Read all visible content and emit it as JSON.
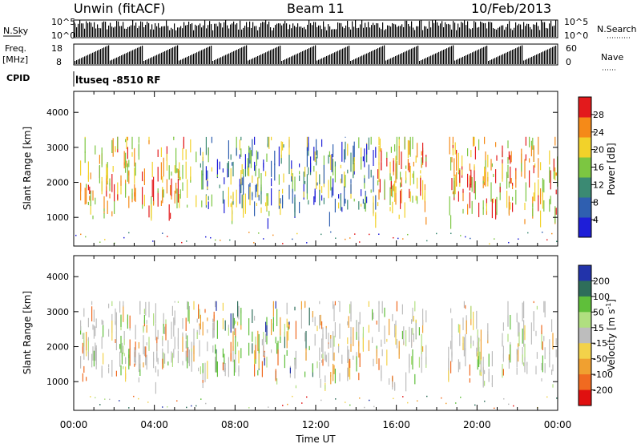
{
  "header": {
    "site": "Unwin (fitACF)",
    "beam": "Beam 11",
    "date": "10/Feb/2013"
  },
  "top_panels": {
    "nsky_label": "N.Sky",
    "nsky_ticks": [
      "10^5",
      "10^0"
    ],
    "nsearch_label": "N.Search",
    "freq_label": "Freq.",
    "freq_unit": "[MHz]",
    "freq_ticks": [
      "18",
      "8"
    ],
    "nave_label": "Nave",
    "nave_ticks": [
      "60",
      "0"
    ],
    "cpid_label": "CPID",
    "cpid_text": "ltuseq -8510 RF"
  },
  "chart_data": [
    {
      "type": "heatmap",
      "name": "power",
      "xlabel": "Time UT",
      "ylabel": "Slant Range [km]",
      "x_range_hours": [
        0,
        24
      ],
      "ylim": [
        180,
        4600
      ],
      "yticks": [
        "4000",
        "3000",
        "2000",
        "1000"
      ],
      "colorbar": {
        "label": "Power [dB]",
        "ticks": [
          "28",
          "24",
          "20",
          "16",
          "12",
          "8",
          "4"
        ],
        "colors": [
          "#1e1ed8",
          "#2f5fb0",
          "#3b8a73",
          "#7cc641",
          "#f2d22a",
          "#f58a18",
          "#e31a1c"
        ]
      }
    },
    {
      "type": "heatmap",
      "name": "velocity",
      "xlabel": "Time UT",
      "ylabel": "Slant Range [km]",
      "x_range_hours": [
        0,
        24
      ],
      "ylim": [
        180,
        4600
      ],
      "yticks": [
        "4000",
        "3000",
        "2000",
        "1000"
      ],
      "colorbar": {
        "label": "Velocity [m s^-1]",
        "ticks": [
          "200",
          "100",
          "50",
          "15",
          "-15",
          "-50",
          "-100",
          "-200"
        ],
        "colors": [
          "#2233aa",
          "#2e6e5a",
          "#5fbf3a",
          "#b0df80",
          "#bdbdbd",
          "#f3d24a",
          "#f0a030",
          "#f06a20",
          "#e01010"
        ]
      }
    }
  ],
  "x_axis": {
    "ticks": [
      "00:00",
      "04:00",
      "08:00",
      "12:00",
      "16:00",
      "20:00",
      "00:00"
    ],
    "label": "Time UT"
  }
}
